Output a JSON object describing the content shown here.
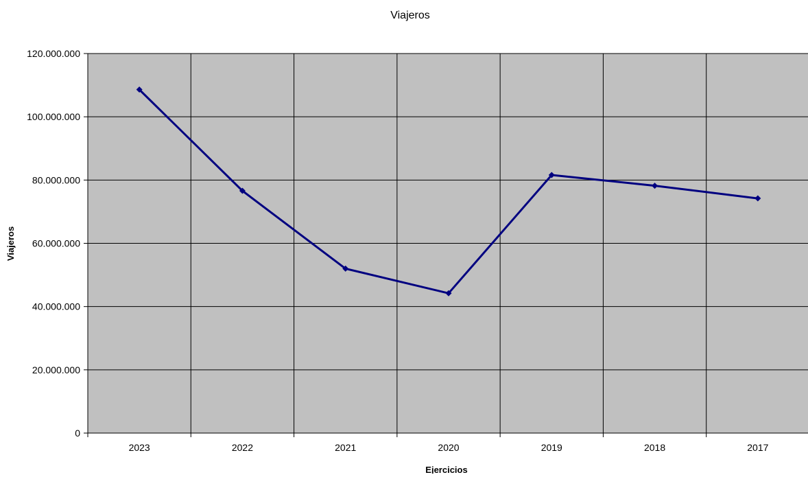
{
  "chart_data": {
    "type": "line",
    "title": "Viajeros",
    "xlabel": "Ejercicios",
    "ylabel": "Viajeros",
    "categories": [
      "2023",
      "2022",
      "2021",
      "2020",
      "2019",
      "2018",
      "2017"
    ],
    "series": [
      {
        "values": [
          108600000,
          76600000,
          52000000,
          44200000,
          81600000,
          78200000,
          74200000
        ]
      }
    ],
    "ylim": [
      0,
      120000000
    ],
    "yticks": [
      0,
      20000000,
      40000000,
      60000000,
      80000000,
      100000000,
      120000000
    ],
    "ytick_labels": [
      "0",
      "20.000.000",
      "40.000.000",
      "60.000.000",
      "80.000.000",
      "100.000.000",
      "120.000.000"
    ],
    "grid": true,
    "plot_background": "#c0c0c0",
    "line_color": "#000080",
    "legend": "none"
  }
}
